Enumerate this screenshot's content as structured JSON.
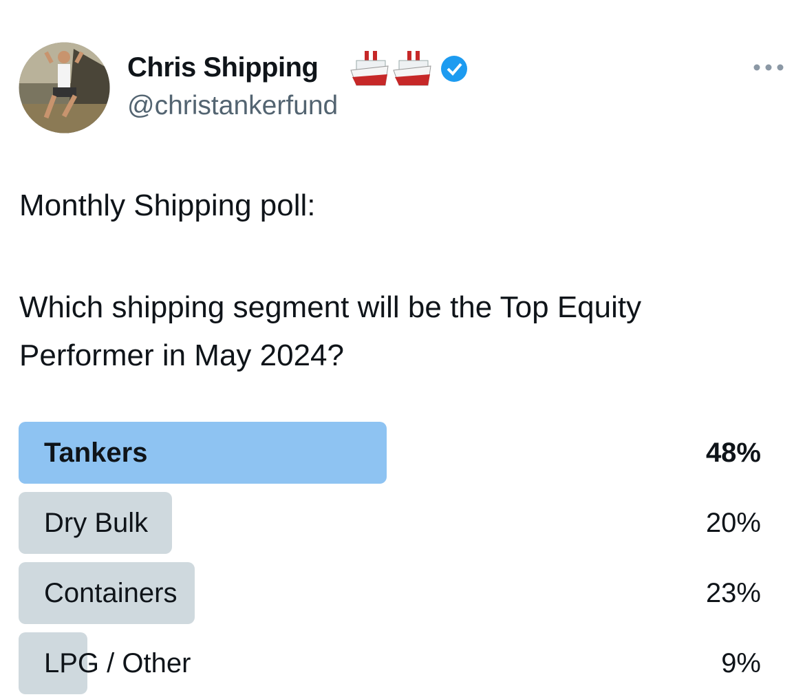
{
  "author": {
    "name": "Chris Shipping",
    "handle": "@christankerfund"
  },
  "body": [
    "Monthly Shipping poll:",
    "Which shipping segment will be the Top Equity Performer in May 2024?"
  ],
  "poll": {
    "options": [
      {
        "label": "Tankers",
        "value": 48,
        "value_label": "48%"
      },
      {
        "label": "Dry Bulk",
        "value": 20,
        "value_label": "20%"
      },
      {
        "label": "Containers",
        "value": 23,
        "value_label": "23%"
      },
      {
        "label": "LPG / Other",
        "value": 9,
        "value_label": "9%"
      }
    ]
  }
}
